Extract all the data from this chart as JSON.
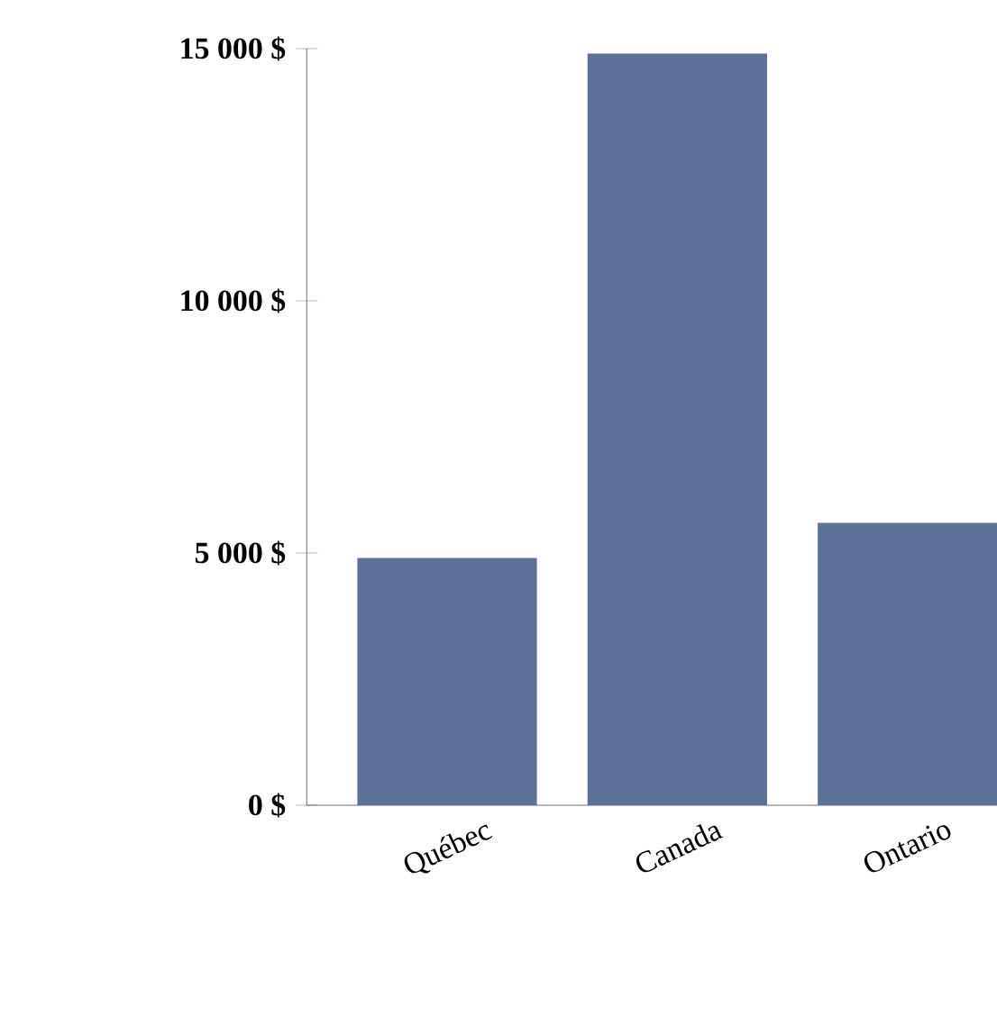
{
  "chart_data": {
    "type": "bar",
    "categories": [
      "Québec",
      "Canada",
      "Ontario"
    ],
    "values": [
      4900,
      14900,
      5600
    ],
    "color": "#5b7199",
    "ylim": [
      0,
      15000
    ],
    "yticks": [
      {
        "value": 0,
        "label": "0 $"
      },
      {
        "value": 5000,
        "label": "5 000 $"
      },
      {
        "value": 10000,
        "label": "10 000 $"
      },
      {
        "value": 15000,
        "label": "15 000 $"
      }
    ],
    "grid": false
  }
}
